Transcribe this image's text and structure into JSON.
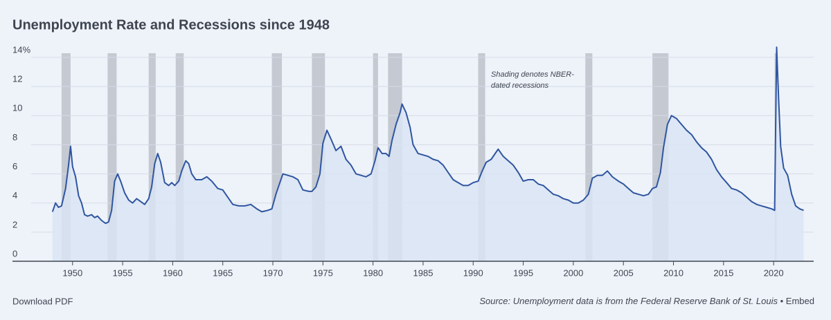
{
  "chart_data": {
    "type": "area",
    "title": "Unemployment Rate and Recessions since 1948",
    "annotation": [
      "Shading denotes NBER-",
      "dated recessions"
    ],
    "line_color": "#2f55a0",
    "area_color": "#d9e4f3",
    "recession_color": "#c4c9d2",
    "grid": true,
    "xlim": [
      1944,
      2024
    ],
    "ylim": [
      0,
      14.5
    ],
    "xticks": [
      1950,
      1955,
      1960,
      1965,
      1970,
      1975,
      1980,
      1985,
      1990,
      1995,
      2000,
      2005,
      2010,
      2015,
      2020
    ],
    "yticks": [
      0,
      2,
      4,
      6,
      8,
      10,
      12,
      {
        "value": 14,
        "label": "14%"
      }
    ],
    "recessions": [
      [
        1948.9,
        1949.8
      ],
      [
        1953.5,
        1954.4
      ],
      [
        1957.6,
        1958.3
      ],
      [
        1960.3,
        1961.1
      ],
      [
        1969.9,
        1970.9
      ],
      [
        1973.9,
        1975.2
      ],
      [
        1980.0,
        1980.5
      ],
      [
        1981.5,
        1982.9
      ],
      [
        1990.5,
        1991.2
      ],
      [
        2001.2,
        2001.9
      ],
      [
        2007.9,
        2009.5
      ],
      [
        2020.1,
        2020.3
      ]
    ],
    "x": [
      1948.0,
      1948.3,
      1948.6,
      1948.9,
      1949.3,
      1949.6,
      1949.8,
      1950.0,
      1950.3,
      1950.6,
      1950.9,
      1951.2,
      1951.5,
      1951.9,
      1952.2,
      1952.5,
      1952.9,
      1953.3,
      1953.6,
      1953.9,
      1954.2,
      1954.5,
      1954.8,
      1955.2,
      1955.6,
      1956.0,
      1956.4,
      1956.8,
      1957.2,
      1957.6,
      1957.9,
      1958.2,
      1958.5,
      1958.8,
      1959.2,
      1959.6,
      1959.9,
      1960.2,
      1960.6,
      1960.9,
      1961.3,
      1961.6,
      1961.9,
      1962.3,
      1962.9,
      1963.4,
      1963.9,
      1964.5,
      1965.0,
      1965.5,
      1966.0,
      1966.6,
      1967.2,
      1967.8,
      1968.4,
      1968.9,
      1969.5,
      1969.9,
      1970.3,
      1970.6,
      1971.0,
      1971.5,
      1972.0,
      1972.5,
      1973.0,
      1973.6,
      1973.9,
      1974.3,
      1974.7,
      1975.0,
      1975.4,
      1975.8,
      1976.3,
      1976.8,
      1977.3,
      1977.8,
      1978.3,
      1978.8,
      1979.3,
      1979.8,
      1980.2,
      1980.5,
      1980.9,
      1981.3,
      1981.6,
      1981.9,
      1982.3,
      1982.7,
      1982.9,
      1983.3,
      1983.7,
      1984.0,
      1984.5,
      1985.0,
      1985.5,
      1986.0,
      1986.5,
      1987.0,
      1987.5,
      1988.0,
      1988.5,
      1989.0,
      1989.5,
      1990.0,
      1990.5,
      1990.9,
      1991.3,
      1991.8,
      1992.3,
      1992.5,
      1993.0,
      1993.5,
      1994.0,
      1994.5,
      1995.0,
      1995.5,
      1996.0,
      1996.5,
      1997.0,
      1997.5,
      1998.0,
      1998.5,
      1999.0,
      1999.5,
      2000.0,
      2000.5,
      2001.0,
      2001.5,
      2001.9,
      2002.4,
      2002.9,
      2003.4,
      2003.9,
      2004.5,
      2005.0,
      2005.5,
      2006.0,
      2006.5,
      2007.0,
      2007.5,
      2007.9,
      2008.3,
      2008.7,
      2009.0,
      2009.4,
      2009.8,
      2010.3,
      2010.8,
      2011.3,
      2011.8,
      2012.3,
      2012.8,
      2013.3,
      2013.8,
      2014.3,
      2014.8,
      2015.3,
      2015.8,
      2016.3,
      2016.8,
      2017.3,
      2017.8,
      2018.3,
      2018.8,
      2019.3,
      2019.8,
      2020.1,
      2020.3,
      2020.5,
      2020.7,
      2021.0,
      2021.4,
      2021.8,
      2022.2,
      2022.6,
      2023.0
    ],
    "values": [
      3.4,
      4.0,
      3.7,
      3.8,
      5.0,
      6.6,
      7.9,
      6.5,
      5.8,
      4.5,
      4.0,
      3.2,
      3.1,
      3.2,
      3.0,
      3.1,
      2.8,
      2.6,
      2.7,
      3.5,
      5.5,
      6.0,
      5.5,
      4.7,
      4.2,
      4.0,
      4.3,
      4.1,
      3.9,
      4.3,
      5.1,
      6.7,
      7.4,
      6.8,
      5.4,
      5.2,
      5.4,
      5.2,
      5.5,
      6.2,
      6.9,
      6.7,
      6.0,
      5.6,
      5.6,
      5.8,
      5.5,
      5.0,
      4.9,
      4.4,
      3.9,
      3.8,
      3.8,
      3.9,
      3.6,
      3.4,
      3.5,
      3.6,
      4.6,
      5.2,
      6.0,
      5.9,
      5.8,
      5.6,
      4.9,
      4.8,
      4.8,
      5.1,
      6.0,
      8.1,
      9.0,
      8.4,
      7.6,
      7.9,
      7.0,
      6.6,
      6.0,
      5.9,
      5.8,
      6.0,
      6.9,
      7.8,
      7.4,
      7.4,
      7.2,
      8.3,
      9.4,
      10.2,
      10.8,
      10.2,
      9.2,
      8.0,
      7.4,
      7.3,
      7.2,
      7.0,
      6.9,
      6.6,
      6.1,
      5.6,
      5.4,
      5.2,
      5.2,
      5.4,
      5.5,
      6.2,
      6.8,
      7.0,
      7.5,
      7.7,
      7.2,
      6.9,
      6.6,
      6.1,
      5.5,
      5.6,
      5.6,
      5.3,
      5.2,
      4.9,
      4.6,
      4.5,
      4.3,
      4.2,
      4.0,
      4.0,
      4.2,
      4.6,
      5.7,
      5.9,
      5.9,
      6.2,
      5.8,
      5.5,
      5.3,
      5.0,
      4.7,
      4.6,
      4.5,
      4.6,
      5.0,
      5.1,
      6.1,
      7.8,
      9.4,
      10.0,
      9.8,
      9.4,
      9.0,
      8.7,
      8.2,
      7.8,
      7.5,
      7.0,
      6.3,
      5.8,
      5.4,
      5.0,
      4.9,
      4.7,
      4.4,
      4.1,
      3.9,
      3.8,
      3.7,
      3.6,
      3.5,
      14.7,
      11.1,
      7.9,
      6.4,
      5.9,
      4.6,
      3.8,
      3.6,
      3.5
    ]
  },
  "footer": {
    "download": "Download PDF",
    "source": "Source: Unemployment data is from the Federal Reserve Bank of St. Louis",
    "separator": "•",
    "embed": "Embed"
  }
}
